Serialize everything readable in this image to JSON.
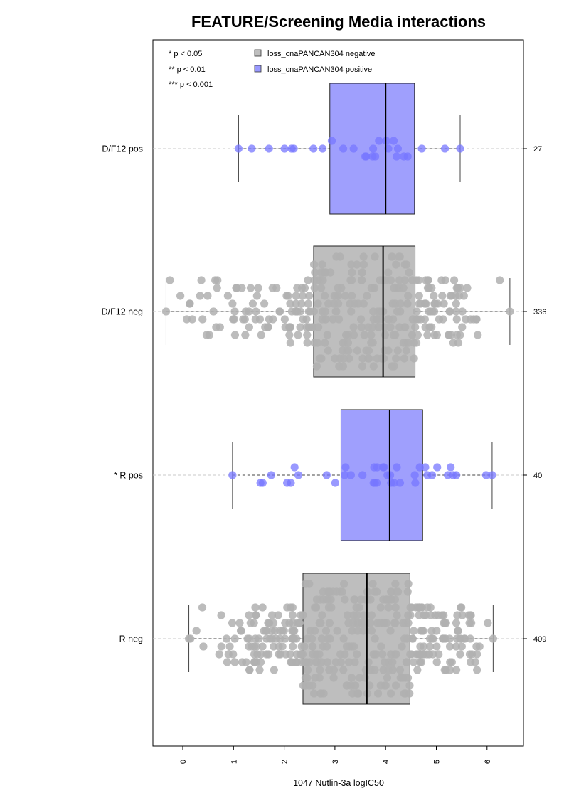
{
  "chart_data": {
    "type": "boxplot-beeswarm",
    "orientation": "horizontal",
    "title": "FEATURE/Screening Media interactions",
    "xlabel": "1047 Nutlin-3a logIC50",
    "xlim": [
      -0.6,
      6.75
    ],
    "xticks": [
      "0",
      "1",
      "2",
      "3",
      "4",
      "5",
      "6"
    ],
    "grid": false,
    "significance_legend": [
      "* p < 0.05",
      "** p < 0.01",
      "*** p < 0.001"
    ],
    "legend": {
      "placement": "top-left",
      "entries": [
        {
          "label": "loss_cnaPANCAN304 negative",
          "color": "#bebebe"
        },
        {
          "label": "loss_cnaPANCAN304 positive",
          "color": "#9999ff"
        }
      ]
    },
    "groups": [
      {
        "label": "D/F12 pos",
        "n": "27",
        "status": "positive",
        "box_color": "#9f9ffd",
        "point_color": "#7777ff",
        "whisker_low": 1.1,
        "q1": 2.9,
        "median": 4.0,
        "q3": 4.57,
        "whisker_high": 5.47
      },
      {
        "label": "D/F12 neg",
        "n": "336",
        "status": "negative",
        "box_color": "#bebebe",
        "point_color": "#b0b0b0",
        "whisker_low": -0.33,
        "q1": 2.58,
        "median": 3.95,
        "q3": 4.58,
        "whisker_high": 6.45
      },
      {
        "label": "* R pos",
        "n": "40",
        "status": "positive",
        "box_color": "#9f9ffd",
        "point_color": "#7777ff",
        "whisker_low": 0.98,
        "q1": 3.12,
        "median": 4.08,
        "q3": 4.73,
        "whisker_high": 6.1
      },
      {
        "label": "R neg",
        "n": "409",
        "status": "negative",
        "box_color": "#bebebe",
        "point_color": "#b0b0b0",
        "whisker_low": 0.12,
        "q1": 2.37,
        "median": 3.63,
        "q3": 4.48,
        "whisker_high": 6.12
      }
    ]
  }
}
